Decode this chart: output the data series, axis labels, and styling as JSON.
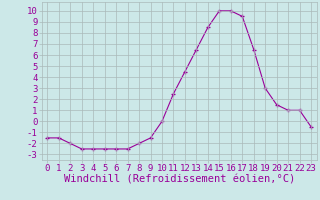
{
  "hours": [
    0,
    1,
    2,
    3,
    4,
    5,
    6,
    7,
    8,
    9,
    10,
    11,
    12,
    13,
    14,
    15,
    16,
    17,
    18,
    19,
    20,
    21,
    22,
    23
  ],
  "values": [
    -1.5,
    -1.5,
    -2.0,
    -2.5,
    -2.5,
    -2.5,
    -2.5,
    -2.5,
    -2.0,
    -1.5,
    0.0,
    2.5,
    4.5,
    6.5,
    8.5,
    10.0,
    10.0,
    9.5,
    6.5,
    3.0,
    1.5,
    1.0,
    1.0,
    -0.5
  ],
  "line_color": "#990099",
  "marker": "+",
  "bg_color": "#cce8e8",
  "grid_color": "#aababa",
  "xlabel": "Windchill (Refroidissement éolien,°C)",
  "yticks": [
    10,
    9,
    8,
    7,
    6,
    5,
    4,
    3,
    2,
    1,
    0,
    -1,
    -2,
    -3
  ],
  "ylim": [
    -3.5,
    10.8
  ],
  "xlim": [
    -0.5,
    23.5
  ],
  "font_color": "#990099",
  "tick_fontsize": 6.5,
  "xlabel_fontsize": 7.5
}
